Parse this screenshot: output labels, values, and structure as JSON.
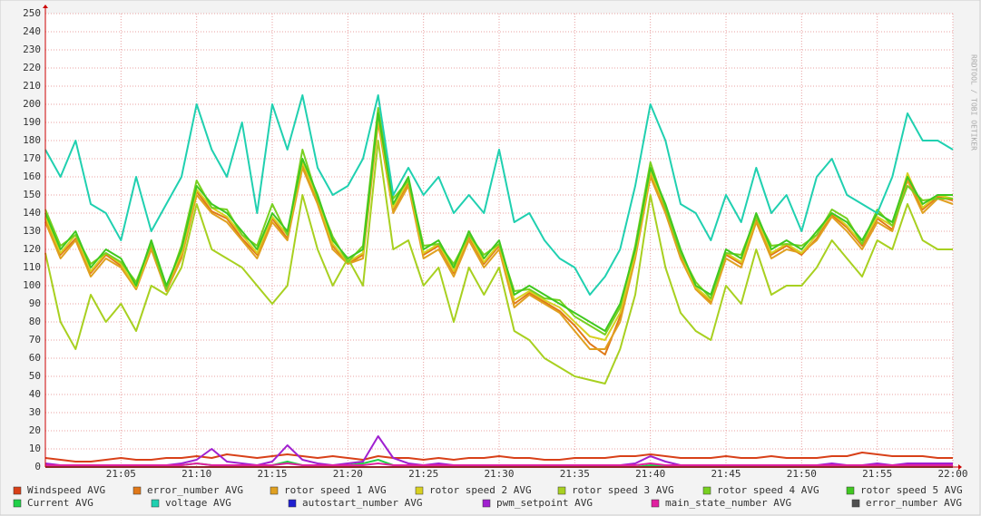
{
  "chart_data": {
    "type": "line",
    "watermark": "RRDTOOL / TOBI OETIKER",
    "x": [
      0,
      1,
      2,
      3,
      4,
      5,
      6,
      7,
      8,
      9,
      10,
      11,
      12,
      13,
      14,
      15,
      16,
      17,
      18,
      19,
      20,
      21,
      22,
      23,
      24,
      25,
      26,
      27,
      28,
      29,
      30,
      31,
      32,
      33,
      34,
      35,
      36,
      37,
      38,
      39,
      40,
      41,
      42,
      43,
      44,
      45,
      46,
      47,
      48,
      49,
      50,
      51,
      52,
      53,
      54,
      55,
      56,
      57,
      58,
      59,
      60
    ],
    "xlim": [
      0,
      60
    ],
    "xticks": [
      {
        "value": 5,
        "label": "21:05"
      },
      {
        "value": 10,
        "label": "21:10"
      },
      {
        "value": 15,
        "label": "21:15"
      },
      {
        "value": 20,
        "label": "21:20"
      },
      {
        "value": 25,
        "label": "21:25"
      },
      {
        "value": 30,
        "label": "21:30"
      },
      {
        "value": 35,
        "label": "21:35"
      },
      {
        "value": 40,
        "label": "21:40"
      },
      {
        "value": 45,
        "label": "21:45"
      },
      {
        "value": 50,
        "label": "21:50"
      },
      {
        "value": 55,
        "label": "21:55"
      },
      {
        "value": 60,
        "label": "22:00"
      }
    ],
    "ylim": [
      0,
      250
    ],
    "yticks": [
      0,
      10,
      20,
      30,
      40,
      50,
      60,
      70,
      80,
      90,
      100,
      110,
      120,
      130,
      140,
      150,
      160,
      170,
      180,
      190,
      200,
      210,
      220,
      230,
      240,
      250
    ],
    "grid": true,
    "series": [
      {
        "name": "Windspeed AVG",
        "color": "#d84018",
        "values": [
          5,
          4,
          3,
          3,
          4,
          5,
          4,
          4,
          5,
          5,
          6,
          5,
          7,
          6,
          5,
          6,
          7,
          6,
          5,
          6,
          5,
          4,
          6,
          5,
          5,
          4,
          5,
          4,
          5,
          5,
          6,
          5,
          5,
          4,
          4,
          5,
          5,
          5,
          6,
          6,
          7,
          6,
          5,
          5,
          5,
          6,
          5,
          5,
          6,
          5,
          5,
          5,
          6,
          6,
          8,
          7,
          6,
          6,
          6,
          5,
          5
        ]
      },
      {
        "name": "error_number AVG",
        "color": "#e07818",
        "values": [
          137,
          117,
          126,
          107,
          117,
          111,
          98,
          121,
          98,
          117,
          152,
          141,
          137,
          126,
          117,
          137,
          126,
          167,
          147,
          122,
          112,
          117,
          192,
          142,
          157,
          117,
          122,
          107,
          127,
          112,
          122,
          90,
          96,
          91,
          86,
          78,
          68,
          62,
          83,
          117,
          162,
          142,
          117,
          98,
          91,
          117,
          112,
          137,
          117,
          122,
          117,
          126,
          139,
          132,
          122,
          137,
          131,
          160,
          142,
          149,
          147
        ]
      },
      {
        "name": "rotor speed 1 AVG",
        "color": "#e0a020",
        "values": [
          135,
          115,
          125,
          105,
          115,
          110,
          98,
          120,
          97,
          115,
          150,
          140,
          135,
          125,
          115,
          135,
          125,
          165,
          145,
          120,
          112,
          115,
          190,
          140,
          155,
          115,
          120,
          105,
          125,
          110,
          120,
          88,
          95,
          90,
          85,
          75,
          65,
          65,
          80,
          115,
          160,
          140,
          115,
          98,
          90,
          115,
          110,
          135,
          115,
          120,
          118,
          125,
          138,
          130,
          120,
          135,
          130,
          158,
          140,
          148,
          145
        ]
      },
      {
        "name": "rotor speed 2 AVG",
        "color": "#d8d020",
        "values": [
          138,
          118,
          128,
          108,
          118,
          112,
          99,
          123,
          99,
          118,
          153,
          143,
          138,
          128,
          118,
          138,
          128,
          168,
          148,
          123,
          113,
          118,
          193,
          143,
          158,
          118,
          123,
          108,
          128,
          113,
          123,
          92,
          97,
          92,
          88,
          80,
          72,
          70,
          85,
          118,
          163,
          143,
          118,
          99,
          92,
          118,
          113,
          138,
          118,
          123,
          118,
          128,
          140,
          133,
          123,
          138,
          133,
          162,
          143,
          150,
          148
        ]
      },
      {
        "name": "rotor speed 3 AVG",
        "color": "#a8d020",
        "values": [
          118,
          80,
          65,
          95,
          80,
          90,
          75,
          100,
          95,
          110,
          145,
          120,
          115,
          110,
          100,
          90,
          100,
          150,
          120,
          100,
          115,
          100,
          180,
          120,
          125,
          100,
          110,
          80,
          110,
          95,
          110,
          75,
          70,
          60,
          55,
          50,
          48,
          46,
          65,
          95,
          150,
          110,
          85,
          75,
          70,
          100,
          90,
          120,
          95,
          100,
          100,
          110,
          125,
          115,
          105,
          125,
          120,
          145,
          125,
          120,
          120
        ]
      },
      {
        "name": "rotor speed 4 AVG",
        "color": "#78d020",
        "values": [
          142,
          122,
          128,
          112,
          118,
          113,
          102,
          123,
          98,
          122,
          158,
          143,
          142,
          128,
          122,
          145,
          128,
          175,
          148,
          127,
          113,
          122,
          198,
          148,
          158,
          122,
          123,
          112,
          128,
          117,
          123,
          97,
          98,
          93,
          92,
          83,
          78,
          73,
          88,
          122,
          168,
          143,
          118,
          102,
          93,
          118,
          117,
          138,
          122,
          123,
          122,
          128,
          142,
          137,
          123,
          142,
          133,
          155,
          147,
          148,
          148
        ]
      },
      {
        "name": "rotor speed 5 AVG",
        "color": "#40c820",
        "values": [
          140,
          120,
          130,
          110,
          120,
          115,
          100,
          125,
          100,
          120,
          155,
          145,
          140,
          130,
          120,
          140,
          130,
          170,
          150,
          125,
          115,
          120,
          195,
          145,
          160,
          120,
          125,
          110,
          130,
          115,
          125,
          95,
          100,
          95,
          90,
          85,
          80,
          75,
          90,
          120,
          165,
          145,
          120,
          100,
          95,
          120,
          115,
          140,
          120,
          125,
          120,
          130,
          140,
          135,
          125,
          140,
          135,
          160,
          145,
          150,
          150
        ]
      },
      {
        "name": "Current AVG",
        "color": "#20d048",
        "values": [
          1,
          0,
          0,
          0,
          0,
          0,
          0,
          0,
          0,
          1,
          2,
          1,
          0,
          0,
          0,
          1,
          3,
          1,
          0,
          0,
          1,
          2,
          4,
          1,
          0,
          0,
          0,
          0,
          0,
          0,
          0,
          0,
          0,
          0,
          0,
          0,
          0,
          0,
          0,
          0,
          1,
          1,
          0,
          0,
          0,
          0,
          0,
          0,
          0,
          0,
          0,
          0,
          0,
          0,
          0,
          0,
          0,
          0,
          0,
          1,
          1
        ]
      },
      {
        "name": "voltage AVG",
        "color": "#20d0b0",
        "values": [
          175,
          160,
          180,
          145,
          140,
          125,
          160,
          130,
          145,
          160,
          200,
          175,
          160,
          190,
          140,
          200,
          175,
          205,
          165,
          150,
          155,
          170,
          205,
          150,
          165,
          150,
          160,
          140,
          150,
          140,
          175,
          135,
          140,
          125,
          115,
          110,
          95,
          105,
          120,
          155,
          200,
          180,
          145,
          140,
          125,
          150,
          135,
          165,
          140,
          150,
          130,
          160,
          170,
          150,
          145,
          140,
          160,
          195,
          180,
          180,
          175
        ]
      },
      {
        "name": "autostart_number AVG",
        "color": "#2020d0",
        "values": [
          0,
          0,
          0,
          0,
          0,
          0,
          0,
          0,
          0,
          0,
          0,
          0,
          0,
          0,
          0,
          0,
          0,
          0,
          0,
          0,
          0,
          0,
          0,
          0,
          0,
          0,
          0,
          0,
          0,
          0,
          0,
          0,
          0,
          0,
          0,
          0,
          0,
          0,
          0,
          0,
          0,
          0,
          0,
          0,
          0,
          0,
          0,
          0,
          0,
          0,
          0,
          0,
          0,
          0,
          0,
          0,
          0,
          0,
          0,
          0,
          0
        ]
      },
      {
        "name": "pwm_setpoint AVG",
        "color": "#a020d0",
        "values": [
          2,
          1,
          0,
          0,
          1,
          1,
          1,
          1,
          1,
          2,
          4,
          10,
          3,
          2,
          1,
          3,
          12,
          4,
          2,
          1,
          2,
          3,
          17,
          5,
          2,
          1,
          2,
          1,
          1,
          1,
          1,
          1,
          1,
          1,
          1,
          1,
          1,
          1,
          1,
          2,
          6,
          3,
          1,
          1,
          1,
          1,
          1,
          1,
          1,
          1,
          1,
          1,
          2,
          1,
          1,
          2,
          1,
          2,
          2,
          2,
          2
        ]
      },
      {
        "name": "main_state_number AVG",
        "color": "#e020a0",
        "values": [
          1,
          1,
          1,
          1,
          1,
          1,
          1,
          1,
          1,
          1,
          2,
          1,
          1,
          1,
          1,
          1,
          2,
          1,
          1,
          1,
          1,
          1,
          2,
          1,
          1,
          1,
          1,
          1,
          1,
          1,
          1,
          1,
          1,
          1,
          1,
          1,
          1,
          1,
          1,
          1,
          2,
          1,
          1,
          1,
          1,
          1,
          1,
          1,
          1,
          1,
          1,
          1,
          1,
          1,
          1,
          1,
          1,
          1,
          1,
          1,
          1
        ]
      },
      {
        "name": "error_number AVG",
        "color": "#505050",
        "values": [
          0,
          0,
          0,
          0,
          0,
          0,
          0,
          0,
          0,
          0,
          0,
          0,
          0,
          0,
          0,
          0,
          0,
          0,
          0,
          0,
          0,
          0,
          0,
          0,
          0,
          0,
          0,
          0,
          0,
          0,
          0,
          0,
          0,
          0,
          0,
          0,
          0,
          0,
          0,
          0,
          0,
          0,
          0,
          0,
          0,
          0,
          0,
          0,
          0,
          0,
          0,
          0,
          0,
          0,
          0,
          0,
          0,
          0,
          0,
          0,
          0
        ]
      }
    ]
  }
}
